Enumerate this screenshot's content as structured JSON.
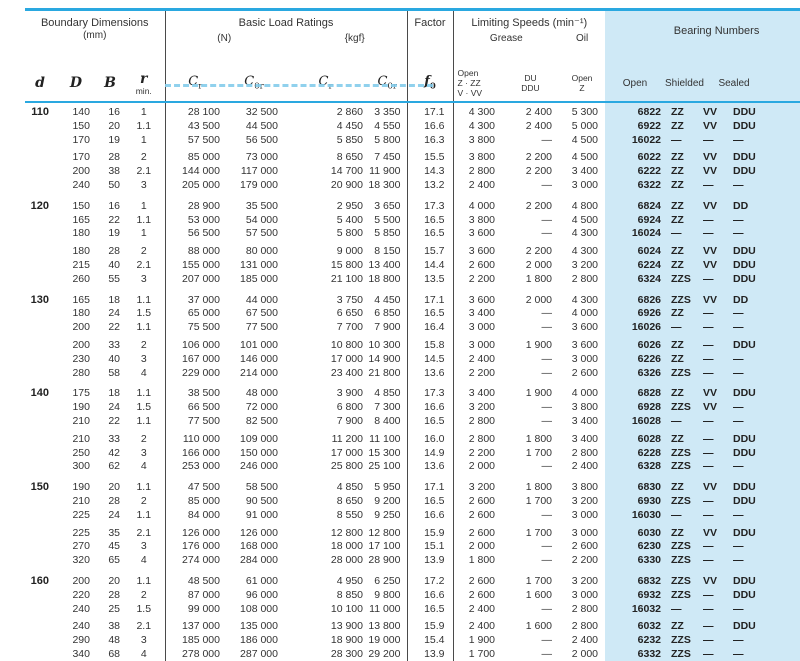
{
  "header": {
    "boundary_title": "Boundary Dimensions",
    "boundary_unit": "(mm)",
    "col_d": "d",
    "col_D": "D",
    "col_B": "B",
    "col_r": "r",
    "col_r_min": "min.",
    "load_title": "Basic Load Ratings",
    "unit_n": "(N)",
    "unit_kgf": "{kgf}",
    "c_base": "C",
    "c_sub_r": "r",
    "c_sub_0r": "0r",
    "factor_title": "Factor",
    "f_base": "f",
    "f_sub": "0",
    "speeds_title": "Limiting Speeds (min⁻¹)",
    "grease": "Grease",
    "oil": "Oil",
    "grease_open_l1": "Open",
    "grease_open_l2": "Z · ZZ",
    "grease_open_l3": "V · VV",
    "du_l1": "DU",
    "du_l2": "DDU",
    "oil_l1": "Open",
    "oil_l2": "Z",
    "bearing_title": "Bearing Numbers",
    "bearing_open": "Open",
    "bearing_shielded": "Shielded",
    "bearing_sealed": "Sealed"
  },
  "colors": {
    "rule_blue": "#2aa8e0",
    "band_blue": "#cfe9f6",
    "text": "#333333"
  },
  "groups": [
    {
      "d": "110",
      "rows": [
        [
          "140",
          "16",
          "1",
          "28 100",
          "32 500",
          "2 860",
          "3 350",
          "17.1",
          "4 300",
          "2 400",
          "5 300",
          "6822",
          "ZZ",
          "VV",
          "DDU"
        ],
        [
          "150",
          "20",
          "1.1",
          "43 500",
          "44 500",
          "4 450",
          "4 550",
          "16.6",
          "4 300",
          "2 400",
          "5 000",
          "6922",
          "ZZ",
          "VV",
          "DDU"
        ],
        [
          "170",
          "19",
          "1",
          "57 500",
          "56 500",
          "5 850",
          "5 800",
          "16.3",
          "3 800",
          "—",
          "4 500",
          "16022",
          "—",
          "—",
          "—"
        ],
        [
          "170",
          "28",
          "2",
          "85 000",
          "73 000",
          "8 650",
          "7 450",
          "15.5",
          "3 800",
          "2 200",
          "4 500",
          "6022",
          "ZZ",
          "VV",
          "DDU"
        ],
        [
          "200",
          "38",
          "2.1",
          "144 000",
          "117 000",
          "14 700",
          "11 900",
          "14.3",
          "2 800",
          "2 200",
          "3 400",
          "6222",
          "ZZ",
          "VV",
          "DDU"
        ],
        [
          "240",
          "50",
          "3",
          "205 000",
          "179 000",
          "20 900",
          "18 300",
          "13.2",
          "2 400",
          "—",
          "3 000",
          "6322",
          "ZZ",
          "—",
          "—"
        ]
      ]
    },
    {
      "d": "120",
      "rows": [
        [
          "150",
          "16",
          "1",
          "28 900",
          "35 500",
          "2 950",
          "3 650",
          "17.3",
          "4 000",
          "2 200",
          "4 800",
          "6824",
          "ZZ",
          "VV",
          "DD"
        ],
        [
          "165",
          "22",
          "1.1",
          "53 000",
          "54 000",
          "5 400",
          "5 500",
          "16.5",
          "3 800",
          "—",
          "4 500",
          "6924",
          "ZZ",
          "—",
          "—"
        ],
        [
          "180",
          "19",
          "1",
          "56 500",
          "57 500",
          "5 800",
          "5 850",
          "16.5",
          "3 600",
          "—",
          "4 300",
          "16024",
          "—",
          "—",
          "—"
        ],
        [
          "180",
          "28",
          "2",
          "88 000",
          "80 000",
          "9 000",
          "8 150",
          "15.7",
          "3 600",
          "2 200",
          "4 300",
          "6024",
          "ZZ",
          "VV",
          "DDU"
        ],
        [
          "215",
          "40",
          "2.1",
          "155 000",
          "131 000",
          "15 800",
          "13 400",
          "14.4",
          "2 600",
          "2 000",
          "3 200",
          "6224",
          "ZZ",
          "VV",
          "DDU"
        ],
        [
          "260",
          "55",
          "3",
          "207 000",
          "185 000",
          "21 100",
          "18 800",
          "13.5",
          "2 200",
          "1 800",
          "2 800",
          "6324",
          "ZZS",
          "—",
          "DDU"
        ]
      ]
    },
    {
      "d": "130",
      "rows": [
        [
          "165",
          "18",
          "1.1",
          "37 000",
          "44 000",
          "3 750",
          "4 450",
          "17.1",
          "3 600",
          "2 000",
          "4 300",
          "6826",
          "ZZS",
          "VV",
          "DD"
        ],
        [
          "180",
          "24",
          "1.5",
          "65 000",
          "67 500",
          "6 650",
          "6 850",
          "16.5",
          "3 400",
          "—",
          "4 000",
          "6926",
          "ZZ",
          "—",
          "—"
        ],
        [
          "200",
          "22",
          "1.1",
          "75 500",
          "77 500",
          "7 700",
          "7 900",
          "16.4",
          "3 000",
          "—",
          "3 600",
          "16026",
          "—",
          "—",
          "—"
        ],
        [
          "200",
          "33",
          "2",
          "106 000",
          "101 000",
          "10 800",
          "10 300",
          "15.8",
          "3 000",
          "1 900",
          "3 600",
          "6026",
          "ZZ",
          "—",
          "DDU"
        ],
        [
          "230",
          "40",
          "3",
          "167 000",
          "146 000",
          "17 000",
          "14 900",
          "14.5",
          "2 400",
          "—",
          "3 000",
          "6226",
          "ZZ",
          "—",
          "—"
        ],
        [
          "280",
          "58",
          "4",
          "229 000",
          "214 000",
          "23 400",
          "21 800",
          "13.6",
          "2 200",
          "—",
          "2 600",
          "6326",
          "ZZS",
          "—",
          "—"
        ]
      ]
    },
    {
      "d": "140",
      "rows": [
        [
          "175",
          "18",
          "1.1",
          "38 500",
          "48 000",
          "3 900",
          "4 850",
          "17.3",
          "3 400",
          "1 900",
          "4 000",
          "6828",
          "ZZ",
          "VV",
          "DDU"
        ],
        [
          "190",
          "24",
          "1.5",
          "66 500",
          "72 000",
          "6 800",
          "7 300",
          "16.6",
          "3 200",
          "—",
          "3 800",
          "6928",
          "ZZS",
          "VV",
          "—"
        ],
        [
          "210",
          "22",
          "1.1",
          "77 500",
          "82 500",
          "7 900",
          "8 400",
          "16.5",
          "2 800",
          "—",
          "3 400",
          "16028",
          "—",
          "—",
          "—"
        ],
        [
          "210",
          "33",
          "2",
          "110 000",
          "109 000",
          "11 200",
          "11 100",
          "16.0",
          "2 800",
          "1 800",
          "3 400",
          "6028",
          "ZZ",
          "—",
          "DDU"
        ],
        [
          "250",
          "42",
          "3",
          "166 000",
          "150 000",
          "17 000",
          "15 300",
          "14.9",
          "2 200",
          "1 700",
          "2 800",
          "6228",
          "ZZS",
          "—",
          "DDU"
        ],
        [
          "300",
          "62",
          "4",
          "253 000",
          "246 000",
          "25 800",
          "25 100",
          "13.6",
          "2 000",
          "—",
          "2 400",
          "6328",
          "ZZS",
          "—",
          "—"
        ]
      ]
    },
    {
      "d": "150",
      "rows": [
        [
          "190",
          "20",
          "1.1",
          "47 500",
          "58 500",
          "4 850",
          "5 950",
          "17.1",
          "3 200",
          "1 800",
          "3 800",
          "6830",
          "ZZ",
          "VV",
          "DDU"
        ],
        [
          "210",
          "28",
          "2",
          "85 000",
          "90 500",
          "8 650",
          "9 200",
          "16.5",
          "2 600",
          "1 700",
          "3 200",
          "6930",
          "ZZS",
          "—",
          "DDU"
        ],
        [
          "225",
          "24",
          "1.1",
          "84 000",
          "91 000",
          "8 550",
          "9 250",
          "16.6",
          "2 600",
          "—",
          "3 000",
          "16030",
          "—",
          "—",
          "—"
        ],
        [
          "225",
          "35",
          "2.1",
          "126 000",
          "126 000",
          "12 800",
          "12 800",
          "15.9",
          "2 600",
          "1 700",
          "3 000",
          "6030",
          "ZZ",
          "VV",
          "DDU"
        ],
        [
          "270",
          "45",
          "3",
          "176 000",
          "168 000",
          "18 000",
          "17 100",
          "15.1",
          "2 000",
          "—",
          "2 600",
          "6230",
          "ZZS",
          "—",
          "—"
        ],
        [
          "320",
          "65",
          "4",
          "274 000",
          "284 000",
          "28 000",
          "28 900",
          "13.9",
          "1 800",
          "—",
          "2 200",
          "6330",
          "ZZS",
          "—",
          "—"
        ]
      ]
    },
    {
      "d": "160",
      "rows": [
        [
          "200",
          "20",
          "1.1",
          "48 500",
          "61 000",
          "4 950",
          "6 250",
          "17.2",
          "2 600",
          "1 700",
          "3 200",
          "6832",
          "ZZS",
          "VV",
          "DDU"
        ],
        [
          "220",
          "28",
          "2",
          "87 000",
          "96 000",
          "8 850",
          "9 800",
          "16.6",
          "2 600",
          "1 600",
          "3 000",
          "6932",
          "ZZS",
          "—",
          "DDU"
        ],
        [
          "240",
          "25",
          "1.5",
          "99 000",
          "108 000",
          "10 100",
          "11 000",
          "16.5",
          "2 400",
          "—",
          "2 800",
          "16032",
          "—",
          "—",
          "—"
        ],
        [
          "240",
          "38",
          "2.1",
          "137 000",
          "135 000",
          "13 900",
          "13 800",
          "15.9",
          "2 400",
          "1 600",
          "2 800",
          "6032",
          "ZZ",
          "—",
          "DDU"
        ],
        [
          "290",
          "48",
          "3",
          "185 000",
          "186 000",
          "18 900",
          "19 000",
          "15.4",
          "1 900",
          "—",
          "2 400",
          "6232",
          "ZZS",
          "—",
          "—"
        ],
        [
          "340",
          "68",
          "4",
          "278 000",
          "287 000",
          "28 300",
          "29 200",
          "13.9",
          "1 700",
          "—",
          "2 000",
          "6332",
          "ZZS",
          "—",
          "—"
        ]
      ]
    }
  ]
}
